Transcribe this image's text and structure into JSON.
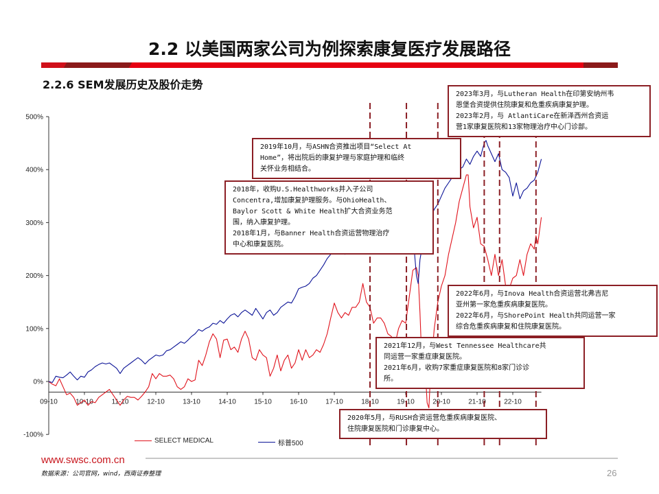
{
  "page": {
    "title": "2.2 以美国两家公司为例探索康复医疗发展路径",
    "subtitle": "2.2.6 SEM发展历史及股价走势",
    "website": "www.swsc.com.cn",
    "source": "数据来源：公司官网，wind，西南证券整理",
    "page_number": "26"
  },
  "colors": {
    "select_medical": "#e0121b",
    "sp500": "#0a1296",
    "annotation_border": "#8b1e24",
    "brand_red": "#c8161d"
  },
  "annotations": [
    {
      "id": "a2023",
      "lines": [
        "2023年3月，与Lutheran Health在印第安纳州韦",
        "恩堡合资提供住院康复和危重疾病康复护理。",
        "2023年2月，与 AtlantiCare在新泽西州合资运",
        "营1家康复医院和13家物理治疗中心门诊部。"
      ]
    },
    {
      "id": "a2019",
      "lines": [
        "2019年10月，与ASHN合资推出项目“Select At",
        "Home”，将出院后的康复护理与家庭护理和临终",
        "关怀业务相结合。"
      ]
    },
    {
      "id": "a2018",
      "lines": [
        "2018年，收购U.S.Healthworks并入子公司",
        "Concentra,增加康复护理服务。与OhioHealth、",
        "Baylor Scott & White Health扩大合资业务范",
        "围，纳入康复护理。",
        "2018年1月，与Banner Health合资运营物理治疗",
        "中心和康复医院。"
      ]
    },
    {
      "id": "a2022",
      "lines": [
        "2022年6月，与Inova Health合资运营北弗吉尼",
        "亚州第一家危重疾病康复医院。",
        "2022年6月，与ShorePoint Health共同运营一家",
        "综合危重疾病康复和住院康复医院。"
      ]
    },
    {
      "id": "a2021",
      "lines": [
        "2021年12月，与West Tennessee Healthcare共",
        "同运营一家重症康复医院。",
        "2021年6月，收购7家重症康复医院和8家门诊诊",
        "所。"
      ]
    },
    {
      "id": "a2020",
      "lines": [
        "2020年5月，与RUSH合资运营危重疾病康复医院、",
        "住院康复医院和门诊康复中心。"
      ]
    }
  ],
  "chart_data": {
    "type": "line",
    "title": "2.2.6 SEM发展历史及股价走势",
    "xlabel": "",
    "ylabel": "",
    "ylim": [
      -100,
      500
    ],
    "yticks": [
      "500%",
      "400%",
      "300%",
      "200%",
      "100%",
      "0%",
      "-100%"
    ],
    "ytick_values": [
      500,
      400,
      300,
      200,
      100,
      0,
      -100
    ],
    "xticks": [
      "09-10",
      "10-10",
      "11-10",
      "12-10",
      "13-10",
      "14-10",
      "15-10",
      "16-10",
      "17-10",
      "18-10",
      "19-10",
      "20-10",
      "21-10",
      "22-10"
    ],
    "x_axis_crossing": -20,
    "legend": [
      "SELECT MEDICAL",
      "标普500"
    ],
    "legend_position": "bottom",
    "grid": false,
    "event_markers_x": [
      9.0,
      10.02,
      10.9,
      12.2,
      12.63,
      13.65
    ],
    "x_unit": "years since 2009-10",
    "series": [
      {
        "name": "SELECT MEDICAL",
        "color": "#e0121b",
        "points": [
          [
            0,
            0
          ],
          [
            0.1,
            -5
          ],
          [
            0.2,
            -8
          ],
          [
            0.3,
            5
          ],
          [
            0.4,
            -10
          ],
          [
            0.5,
            -25
          ],
          [
            0.6,
            -22
          ],
          [
            0.7,
            -30
          ],
          [
            0.8,
            -45
          ],
          [
            0.9,
            -40
          ],
          [
            1.0,
            -35
          ],
          [
            1.1,
            -45
          ],
          [
            1.2,
            -38
          ],
          [
            1.3,
            -40
          ],
          [
            1.4,
            -30
          ],
          [
            1.5,
            -25
          ],
          [
            1.6,
            -20
          ],
          [
            1.7,
            -15
          ],
          [
            1.8,
            -25
          ],
          [
            1.9,
            -35
          ],
          [
            2.0,
            -45
          ],
          [
            2.1,
            -35
          ],
          [
            2.2,
            -28
          ],
          [
            2.3,
            -30
          ],
          [
            2.4,
            -30
          ],
          [
            2.5,
            -35
          ],
          [
            2.6,
            -28
          ],
          [
            2.7,
            -20
          ],
          [
            2.8,
            -10
          ],
          [
            2.9,
            15
          ],
          [
            3.0,
            5
          ],
          [
            3.1,
            15
          ],
          [
            3.2,
            10
          ],
          [
            3.3,
            10
          ],
          [
            3.4,
            12
          ],
          [
            3.5,
            5
          ],
          [
            3.6,
            -10
          ],
          [
            3.7,
            -15
          ],
          [
            3.8,
            -10
          ],
          [
            3.9,
            5
          ],
          [
            4.0,
            0
          ],
          [
            4.1,
            3
          ],
          [
            4.2,
            40
          ],
          [
            4.3,
            30
          ],
          [
            4.4,
            50
          ],
          [
            4.5,
            75
          ],
          [
            4.6,
            90
          ],
          [
            4.7,
            80
          ],
          [
            4.8,
            45
          ],
          [
            4.9,
            78
          ],
          [
            5.0,
            80
          ],
          [
            5.1,
            60
          ],
          [
            5.2,
            65
          ],
          [
            5.3,
            55
          ],
          [
            5.4,
            80
          ],
          [
            5.5,
            95
          ],
          [
            5.6,
            80
          ],
          [
            5.7,
            45
          ],
          [
            5.8,
            40
          ],
          [
            5.9,
            60
          ],
          [
            6.0,
            50
          ],
          [
            6.1,
            45
          ],
          [
            6.2,
            10
          ],
          [
            6.3,
            25
          ],
          [
            6.4,
            50
          ],
          [
            6.5,
            20
          ],
          [
            6.6,
            40
          ],
          [
            6.7,
            50
          ],
          [
            6.8,
            25
          ],
          [
            6.9,
            35
          ],
          [
            7.0,
            60
          ],
          [
            7.1,
            40
          ],
          [
            7.2,
            60
          ],
          [
            7.3,
            45
          ],
          [
            7.4,
            50
          ],
          [
            7.5,
            60
          ],
          [
            7.6,
            55
          ],
          [
            7.7,
            70
          ],
          [
            7.8,
            90
          ],
          [
            7.9,
            120
          ],
          [
            8.0,
            148
          ],
          [
            8.1,
            130
          ],
          [
            8.2,
            120
          ],
          [
            8.3,
            130
          ],
          [
            8.4,
            125
          ],
          [
            8.5,
            140
          ],
          [
            8.6,
            140
          ],
          [
            8.7,
            150
          ],
          [
            8.8,
            185
          ],
          [
            8.9,
            150
          ],
          [
            9.0,
            140
          ],
          [
            9.1,
            110
          ],
          [
            9.2,
            120
          ],
          [
            9.3,
            120
          ],
          [
            9.4,
            110
          ],
          [
            9.5,
            90
          ],
          [
            9.6,
            85
          ],
          [
            9.7,
            70
          ],
          [
            9.8,
            100
          ],
          [
            9.9,
            115
          ],
          [
            10.0,
            110
          ],
          [
            10.1,
            160
          ],
          [
            10.2,
            210
          ],
          [
            10.3,
            215
          ],
          [
            10.35,
            200
          ],
          [
            10.4,
            130
          ],
          [
            10.45,
            40
          ],
          [
            10.5,
            -10
          ],
          [
            10.55,
            20
          ],
          [
            10.6,
            -40
          ],
          [
            10.65,
            -50
          ],
          [
            10.7,
            20
          ],
          [
            10.8,
            100
          ],
          [
            10.9,
            150
          ],
          [
            11.0,
            180
          ],
          [
            11.1,
            200
          ],
          [
            11.2,
            240
          ],
          [
            11.3,
            270
          ],
          [
            11.4,
            300
          ],
          [
            11.5,
            340
          ],
          [
            11.6,
            365
          ],
          [
            11.7,
            390
          ],
          [
            11.75,
            390
          ],
          [
            11.8,
            330
          ],
          [
            11.9,
            290
          ],
          [
            12.0,
            310
          ],
          [
            12.1,
            260
          ],
          [
            12.2,
            255
          ],
          [
            12.3,
            230
          ],
          [
            12.4,
            200
          ],
          [
            12.5,
            240
          ],
          [
            12.6,
            200
          ],
          [
            12.7,
            230
          ],
          [
            12.8,
            180
          ],
          [
            12.9,
            175
          ],
          [
            13.0,
            195
          ],
          [
            13.1,
            200
          ],
          [
            13.2,
            230
          ],
          [
            13.3,
            200
          ],
          [
            13.4,
            240
          ],
          [
            13.5,
            260
          ],
          [
            13.6,
            250
          ],
          [
            13.65,
            275
          ],
          [
            13.7,
            260
          ],
          [
            13.8,
            310
          ]
        ]
      },
      {
        "name": "标普500",
        "color": "#0a1296",
        "points": [
          [
            0,
            0
          ],
          [
            0.1,
            -2
          ],
          [
            0.2,
            10
          ],
          [
            0.3,
            8
          ],
          [
            0.4,
            7
          ],
          [
            0.5,
            12
          ],
          [
            0.6,
            18
          ],
          [
            0.7,
            10
          ],
          [
            0.8,
            3
          ],
          [
            0.9,
            10
          ],
          [
            1.0,
            8
          ],
          [
            1.1,
            18
          ],
          [
            1.2,
            22
          ],
          [
            1.3,
            28
          ],
          [
            1.4,
            32
          ],
          [
            1.5,
            35
          ],
          [
            1.6,
            33
          ],
          [
            1.7,
            35
          ],
          [
            1.8,
            30
          ],
          [
            1.9,
            25
          ],
          [
            2.0,
            15
          ],
          [
            2.1,
            25
          ],
          [
            2.2,
            30
          ],
          [
            2.3,
            35
          ],
          [
            2.4,
            40
          ],
          [
            2.5,
            45
          ],
          [
            2.6,
            40
          ],
          [
            2.7,
            33
          ],
          [
            2.8,
            40
          ],
          [
            2.9,
            45
          ],
          [
            3.0,
            50
          ],
          [
            3.1,
            48
          ],
          [
            3.2,
            50
          ],
          [
            3.3,
            58
          ],
          [
            3.4,
            60
          ],
          [
            3.5,
            65
          ],
          [
            3.6,
            70
          ],
          [
            3.7,
            75
          ],
          [
            3.8,
            72
          ],
          [
            3.9,
            78
          ],
          [
            4.0,
            85
          ],
          [
            4.1,
            90
          ],
          [
            4.2,
            98
          ],
          [
            4.3,
            95
          ],
          [
            4.4,
            100
          ],
          [
            4.5,
            103
          ],
          [
            4.6,
            110
          ],
          [
            4.7,
            108
          ],
          [
            4.8,
            115
          ],
          [
            4.9,
            110
          ],
          [
            5.0,
            118
          ],
          [
            5.1,
            125
          ],
          [
            5.2,
            128
          ],
          [
            5.3,
            122
          ],
          [
            5.4,
            130
          ],
          [
            5.5,
            135
          ],
          [
            5.6,
            130
          ],
          [
            5.7,
            125
          ],
          [
            5.8,
            138
          ],
          [
            5.9,
            128
          ],
          [
            6.0,
            118
          ],
          [
            6.1,
            130
          ],
          [
            6.2,
            135
          ],
          [
            6.3,
            125
          ],
          [
            6.4,
            130
          ],
          [
            6.5,
            140
          ],
          [
            6.6,
            145
          ],
          [
            6.7,
            150
          ],
          [
            6.8,
            148
          ],
          [
            6.9,
            160
          ],
          [
            7.0,
            175
          ],
          [
            7.1,
            178
          ],
          [
            7.2,
            180
          ],
          [
            7.3,
            185
          ],
          [
            7.4,
            195
          ],
          [
            7.5,
            200
          ],
          [
            7.6,
            210
          ],
          [
            7.7,
            220
          ],
          [
            7.8,
            232
          ],
          [
            7.9,
            240
          ],
          [
            8.0,
            250
          ],
          [
            8.1,
            260
          ],
          [
            8.2,
            245
          ],
          [
            8.3,
            240
          ],
          [
            8.4,
            255
          ],
          [
            8.5,
            262
          ],
          [
            8.6,
            270
          ],
          [
            8.7,
            285
          ],
          [
            8.8,
            300
          ],
          [
            8.9,
            305
          ],
          [
            9.0,
            300
          ],
          [
            9.1,
            282
          ],
          [
            9.2,
            270
          ],
          [
            9.3,
            290
          ],
          [
            9.4,
            305
          ],
          [
            9.5,
            310
          ],
          [
            9.6,
            315
          ],
          [
            9.7,
            295
          ],
          [
            9.8,
            330
          ],
          [
            9.9,
            330
          ],
          [
            10.0,
            305
          ],
          [
            10.1,
            310
          ],
          [
            10.2,
            280
          ],
          [
            10.3,
            200
          ],
          [
            10.35,
            185
          ],
          [
            10.4,
            230
          ],
          [
            10.5,
            270
          ],
          [
            10.6,
            290
          ],
          [
            10.7,
            310
          ],
          [
            10.8,
            325
          ],
          [
            10.9,
            335
          ],
          [
            11.0,
            350
          ],
          [
            11.1,
            365
          ],
          [
            11.2,
            375
          ],
          [
            11.3,
            385
          ],
          [
            11.4,
            395
          ],
          [
            11.5,
            400
          ],
          [
            11.6,
            405
          ],
          [
            11.7,
            420
          ],
          [
            11.8,
            410
          ],
          [
            11.9,
            425
          ],
          [
            12.0,
            435
          ],
          [
            12.1,
            425
          ],
          [
            12.2,
            450
          ],
          [
            12.25,
            455
          ],
          [
            12.3,
            445
          ],
          [
            12.4,
            430
          ],
          [
            12.5,
            415
          ],
          [
            12.6,
            430
          ],
          [
            12.7,
            400
          ],
          [
            12.8,
            395
          ],
          [
            12.9,
            385
          ],
          [
            13.0,
            350
          ],
          [
            13.1,
            375
          ],
          [
            13.2,
            345
          ],
          [
            13.3,
            360
          ],
          [
            13.4,
            365
          ],
          [
            13.5,
            375
          ],
          [
            13.6,
            380
          ],
          [
            13.7,
            395
          ],
          [
            13.8,
            420
          ]
        ]
      }
    ]
  }
}
